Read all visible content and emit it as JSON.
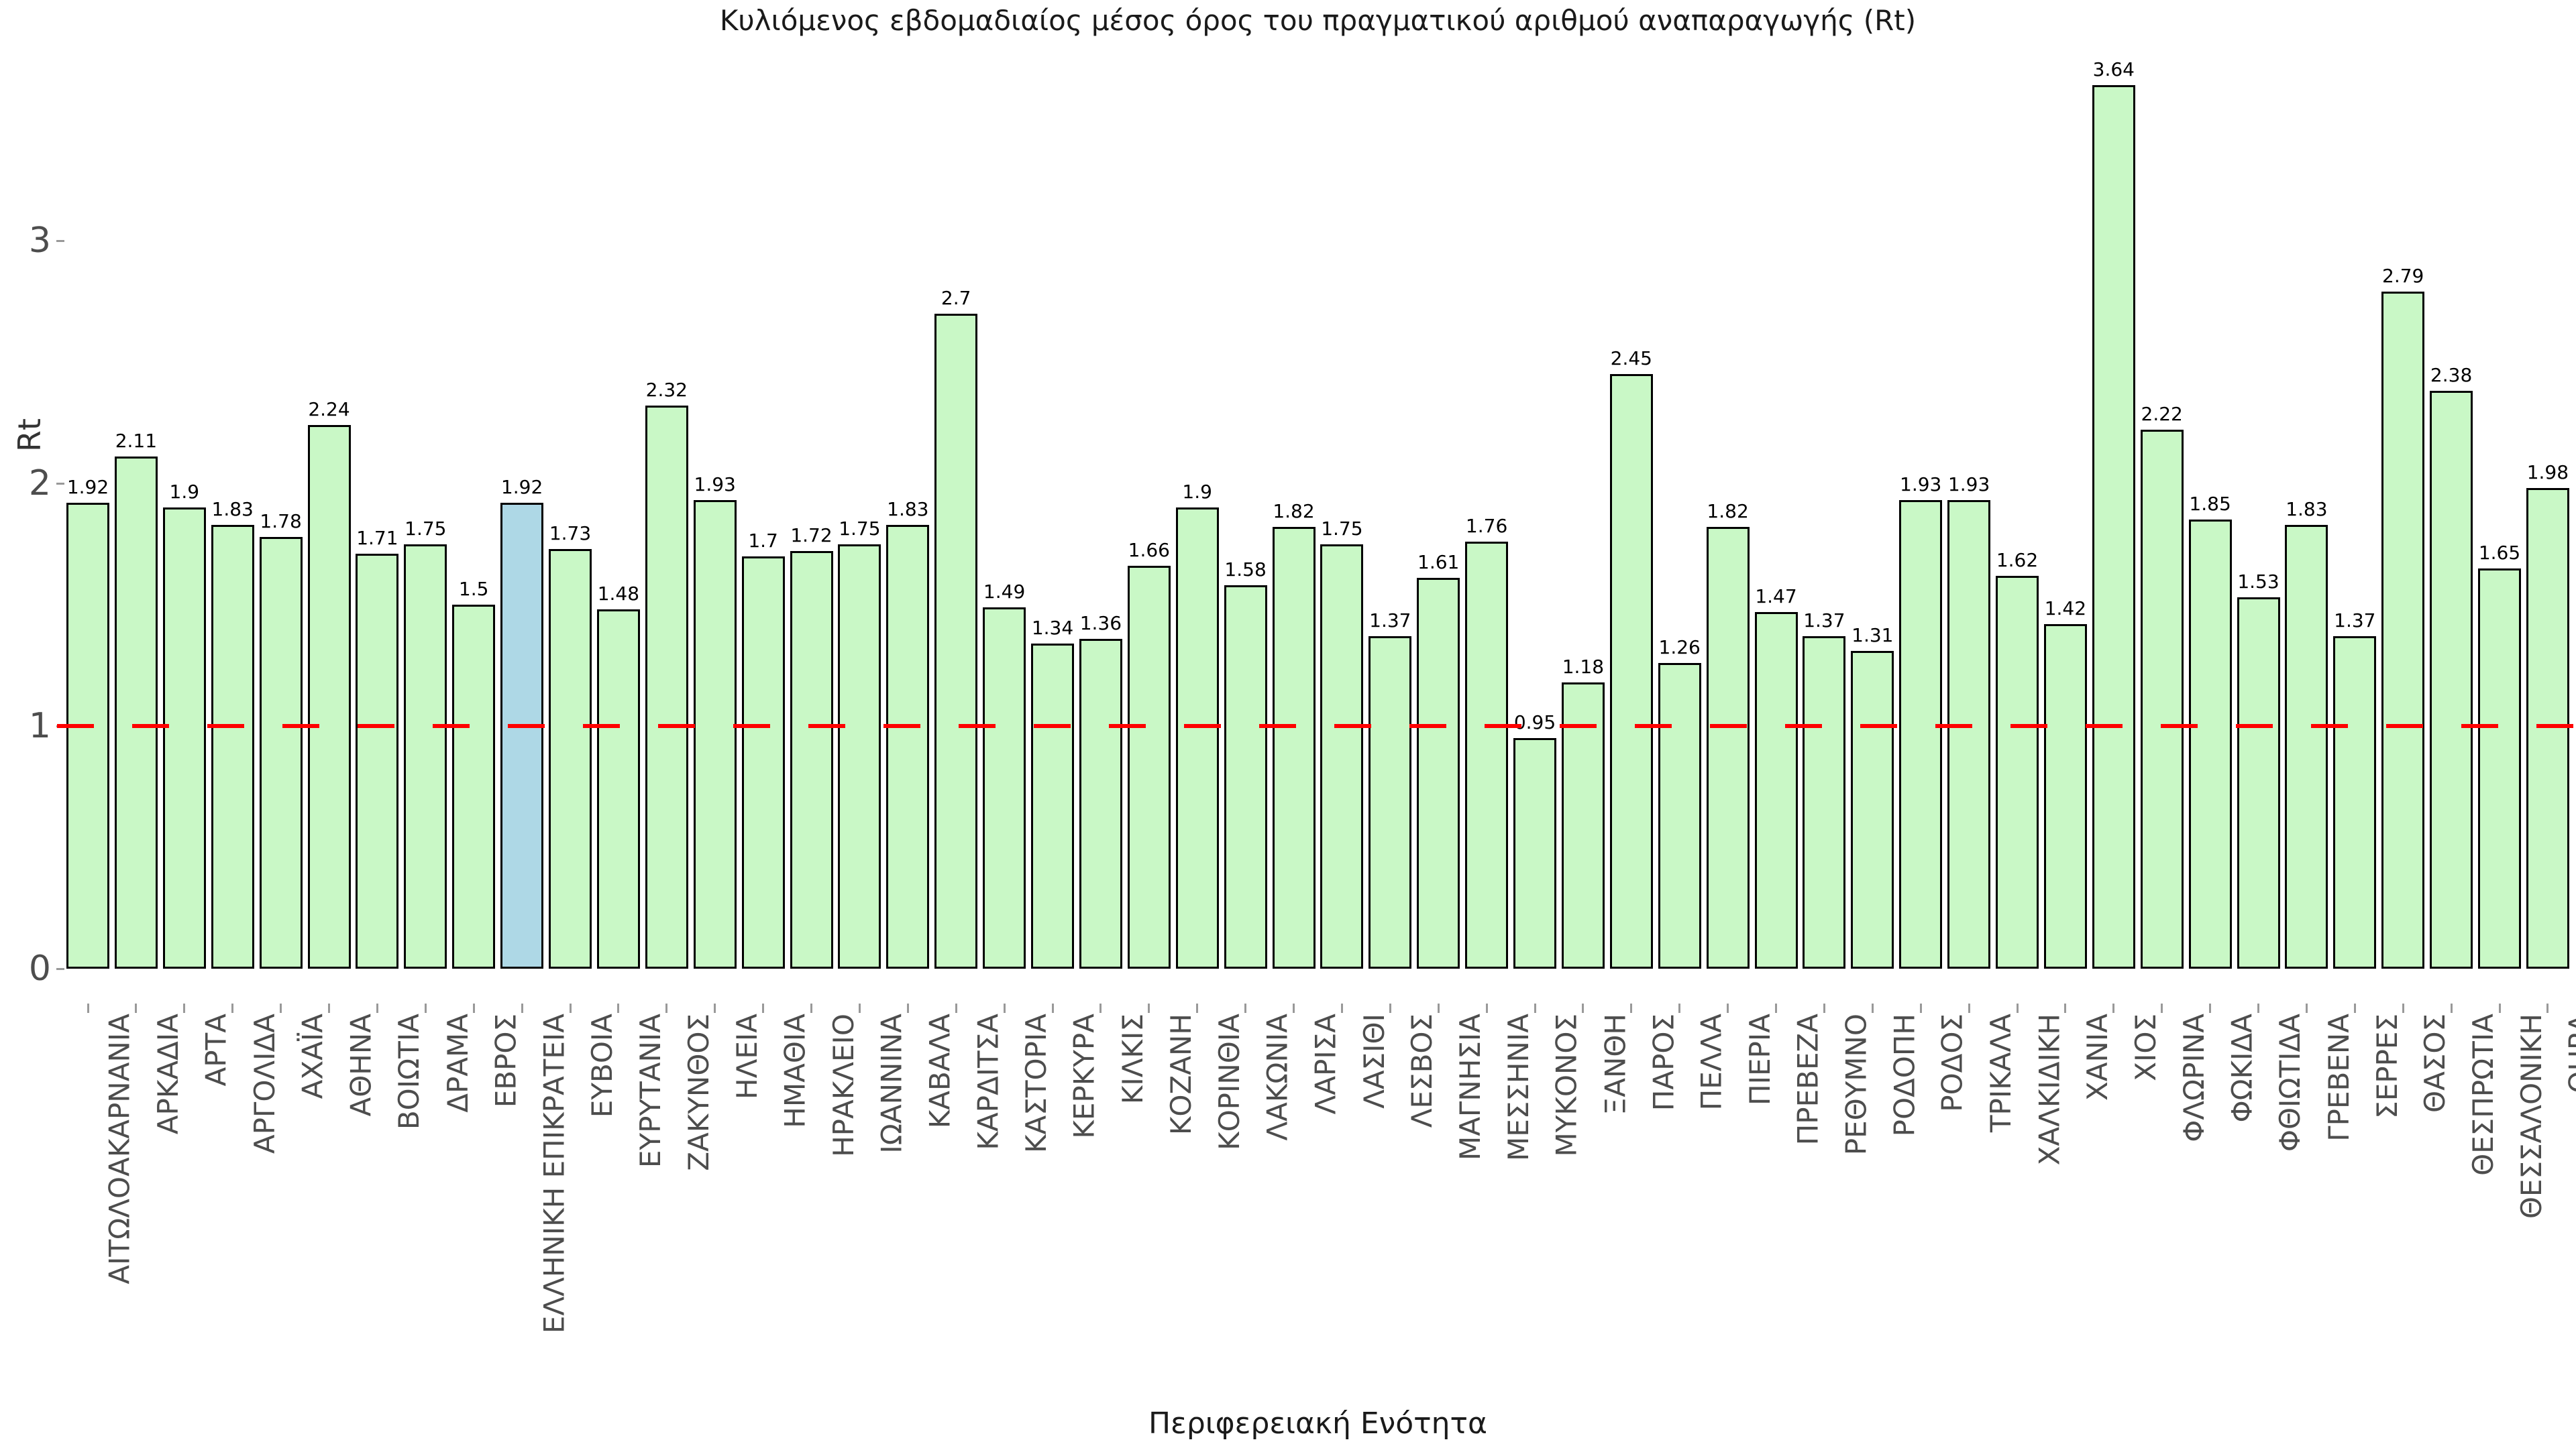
{
  "chart_data": {
    "type": "bar",
    "title": "Κυλιόμενος εβδομαδιαίος μέσος όρος του πραγματικού αριθμού αναπαραγωγής (Rt)",
    "xlabel": "Περιφερειακή Ενότητα",
    "ylabel": "Rt",
    "ylim": [
      0,
      3.95
    ],
    "yticks": [
      0,
      1,
      2,
      3
    ],
    "grid": false,
    "legend_position": "none",
    "bar_fill": "#c9f8c6",
    "bar_edge": "#000000",
    "highlight_category": "ΕΛΛΗΝΙΚΗ ΕΠΙΚΡΑΤΕΙΑ",
    "highlight_fill": "#aed8e6",
    "tick_label_color": "#4d4d4d",
    "value_label_color": "#000000",
    "reference_line": {
      "y": 1,
      "color": "#ff0000",
      "style": "dashed"
    },
    "categories": [
      "ΑΙΤΩΛΟΑΚΑΡΝΑΝΙΑ",
      "ΑΡΚΑΔΙΑ",
      "ΑΡΤΑ",
      "ΑΡΓΟΛΙΔΑ",
      "ΑΧΑΪΑ",
      "ΑΘΗΝΑ",
      "ΒΟΙΩΤΙΑ",
      "ΔΡΑΜΑ",
      "ΕΒΡΟΣ",
      "ΕΛΛΗΝΙΚΗ ΕΠΙΚΡΑΤΕΙΑ",
      "ΕΥΒΟΙΑ",
      "ΕΥΡΥΤΑΝΙΑ",
      "ΖΑΚΥΝΘΟΣ",
      "ΗΛΕΙΑ",
      "ΗΜΑΘΙΑ",
      "ΗΡΑΚΛΕΙΟ",
      "ΙΩΑΝΝΙΝΑ",
      "ΚΑΒΑΛΑ",
      "ΚΑΡΔΙΤΣΑ",
      "ΚΑΣΤΟΡΙΑ",
      "ΚΕΡΚΥΡΑ",
      "ΚΙΛΚΙΣ",
      "ΚΟΖΑΝΗ",
      "ΚΟΡΙΝΘΙΑ",
      "ΛΑΚΩΝΙΑ",
      "ΛΑΡΙΣΑ",
      "ΛΑΣΙΘΙ",
      "ΛΕΣΒΟΣ",
      "ΜΑΓΝΗΣΙΑ",
      "ΜΕΣΣΗΝΙΑ",
      "ΜΥΚΟΝΟΣ",
      "ΞΑΝΘΗ",
      "ΠΑΡΟΣ",
      "ΠΕΛΛΑ",
      "ΠΙΕΡΙΑ",
      "ΠΡΕΒΕΖΑ",
      "ΡΕΘΥΜΝΟ",
      "ΡΟΔΟΠΗ",
      "ΡΟΔΟΣ",
      "ΤΡΙΚΑΛΑ",
      "ΧΑΛΚΙΔΙΚΗ",
      "ΧΑΝΙΑ",
      "ΧΙΟΣ",
      "ΦΛΩΡΙΝΑ",
      "ΦΩΚΙΔΑ",
      "ΦΘΙΩΤΙΔΑ",
      "ΓΡΕΒΕΝΑ",
      "ΣΕΡΡΕΣ",
      "ΘΑΣΟΣ",
      "ΘΕΣΠΡΩΤΙΑ",
      "ΘΕΣΣΑΛΟΝΙΚΗ",
      "ΘΗΡΑ"
    ],
    "values": [
      1.92,
      2.11,
      1.9,
      1.83,
      1.78,
      2.24,
      1.71,
      1.75,
      1.5,
      1.92,
      1.73,
      1.48,
      2.32,
      1.93,
      1.7,
      1.72,
      1.75,
      1.83,
      2.7,
      1.49,
      1.34,
      1.36,
      1.66,
      1.9,
      1.58,
      1.82,
      1.75,
      1.37,
      1.61,
      1.76,
      0.95,
      1.18,
      2.45,
      1.26,
      1.82,
      1.47,
      1.37,
      1.31,
      1.93,
      1.93,
      1.62,
      1.42,
      3.64,
      2.22,
      1.85,
      1.53,
      1.83,
      1.37,
      2.79,
      2.38,
      1.65,
      1.98
    ]
  }
}
